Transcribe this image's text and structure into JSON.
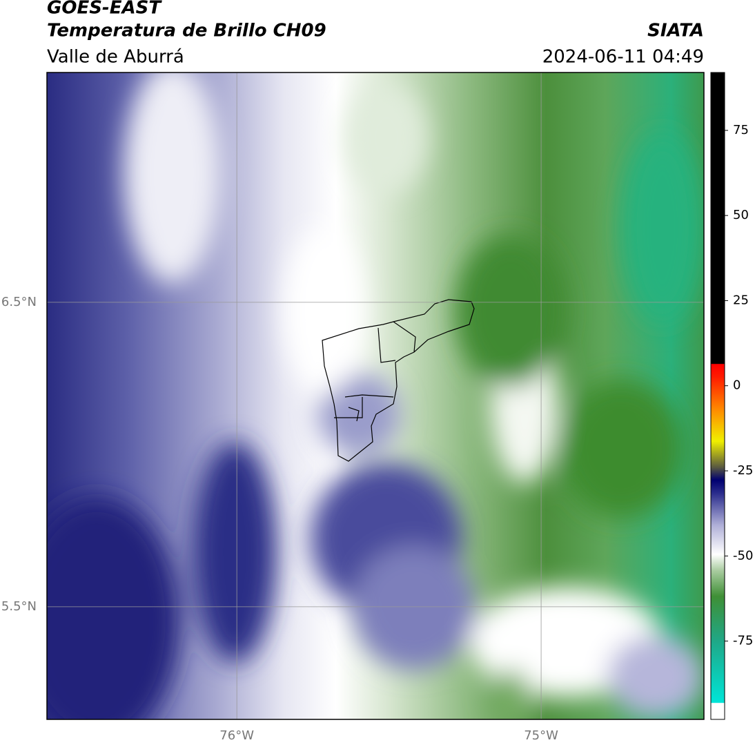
{
  "header": {
    "title": "GOES-EAST",
    "subtitle": "Temperatura de Brillo CH09",
    "region": "Valle de Aburrá",
    "agency": "SIATA",
    "datetime": "2024-06-11 04:49"
  },
  "map": {
    "xlim": [
      -76.624,
      -74.465
    ],
    "ylim": [
      5.13,
      7.255
    ],
    "xticks": [
      {
        "value": -76,
        "label": "76°W"
      },
      {
        "value": -75,
        "label": "75°W"
      }
    ],
    "yticks": [
      {
        "value": 6.5,
        "label": "6.5°N"
      },
      {
        "value": 5.5,
        "label": "5.5°N"
      }
    ],
    "grid": true
  },
  "colorbar": {
    "lim": [
      -98,
      92
    ],
    "ticks": [
      75,
      50,
      25,
      0,
      -25,
      -50,
      -75
    ]
  }
}
